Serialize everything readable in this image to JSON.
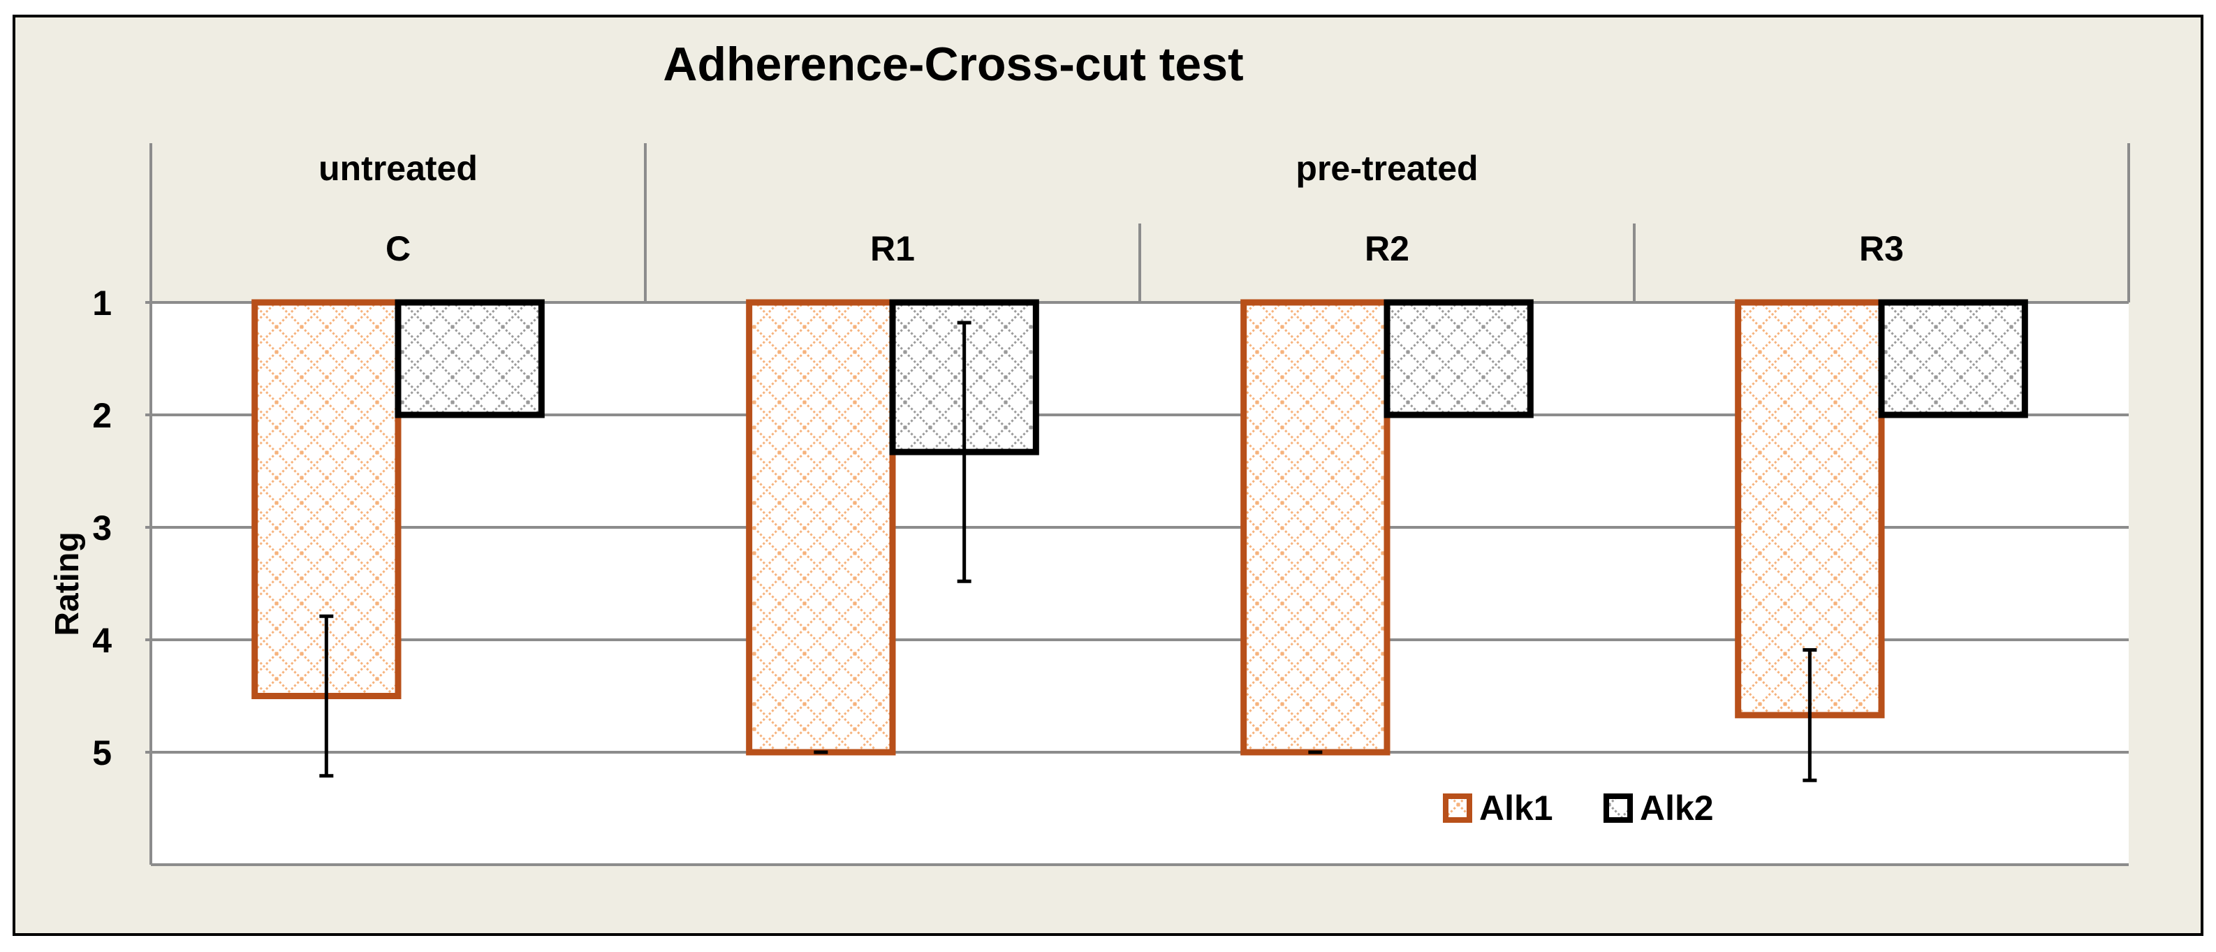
{
  "colors": {
    "frame_background": "#efede3",
    "plot_background": "#ffffff",
    "grid": "#8c8c8c",
    "alk1": "#b8501a",
    "alk1_pattern": "#f6b27c",
    "alk2": "#000000",
    "alk2_pattern": "#9a9a9a"
  },
  "chart_data": {
    "type": "bar",
    "title": "Adherence-Cross-cut test",
    "xlabel": "",
    "ylabel": "Rating",
    "y_inverted": true,
    "ylim": [
      1,
      6
    ],
    "yticks": [
      1,
      2,
      3,
      4,
      5
    ],
    "grid": true,
    "group_labels": [
      {
        "label": "untreated",
        "span": 1
      },
      {
        "label": "pre-treated",
        "span": 3
      }
    ],
    "categories": [
      "C",
      "R1",
      "R2",
      "R3"
    ],
    "series": [
      {
        "name": "Alk1",
        "values": [
          4.5,
          5.0,
          5.0,
          4.67
        ],
        "error": [
          0.71,
          0.0,
          0.0,
          0.58
        ]
      },
      {
        "name": "Alk2",
        "values": [
          2.0,
          2.33,
          2.0,
          2.0
        ],
        "error": [
          0.0,
          1.15,
          0.0,
          0.0
        ]
      }
    ],
    "legend_position": "bottom-right"
  }
}
